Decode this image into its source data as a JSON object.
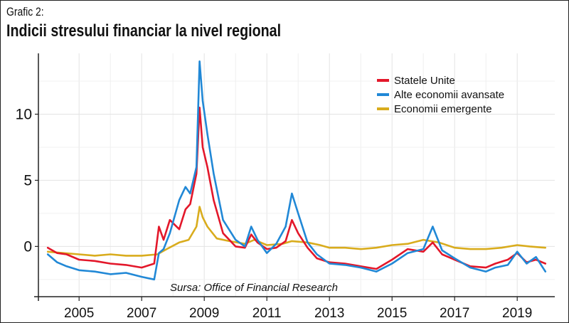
{
  "header": {
    "label": "Grafic 2:",
    "title": "Indicii stresului financiar la nivel regional"
  },
  "source": "Sursa: Office of Financial Research",
  "chart_data": {
    "type": "line",
    "title": "Indicii stresului financiar la nivel regional",
    "xlabel": "",
    "ylabel": "",
    "xlim": [
      2003.7,
      2020.2
    ],
    "ylim": [
      -3.8,
      14.6
    ],
    "xticks": [
      2005,
      2007,
      2009,
      2011,
      2013,
      2015,
      2017,
      2019
    ],
    "xtick_labels": [
      "2005",
      "2007",
      "2009",
      "2011",
      "2013",
      "2015",
      "2017",
      "2019"
    ],
    "yticks": [
      0,
      5,
      10
    ],
    "ytick_labels": [
      "0",
      "5",
      "10"
    ],
    "grid": true,
    "legend_position": "top-right",
    "series": [
      {
        "name": "Statele Unite",
        "color": "#e3172a",
        "points": [
          [
            2004.0,
            -0.1
          ],
          [
            2004.3,
            -0.5
          ],
          [
            2004.6,
            -0.6
          ],
          [
            2005.0,
            -1.0
          ],
          [
            2005.5,
            -1.1
          ],
          [
            2006.0,
            -1.3
          ],
          [
            2006.5,
            -1.4
          ],
          [
            2007.0,
            -1.6
          ],
          [
            2007.4,
            -1.3
          ],
          [
            2007.55,
            1.5
          ],
          [
            2007.7,
            0.5
          ],
          [
            2007.9,
            2.0
          ],
          [
            2008.2,
            1.3
          ],
          [
            2008.4,
            2.8
          ],
          [
            2008.55,
            3.2
          ],
          [
            2008.75,
            5.5
          ],
          [
            2008.85,
            10.5
          ],
          [
            2008.95,
            7.5
          ],
          [
            2009.1,
            6.0
          ],
          [
            2009.3,
            3.5
          ],
          [
            2009.6,
            1.0
          ],
          [
            2010.0,
            0.0
          ],
          [
            2010.3,
            -0.1
          ],
          [
            2010.5,
            0.9
          ],
          [
            2010.7,
            0.3
          ],
          [
            2011.0,
            -0.2
          ],
          [
            2011.3,
            -0.1
          ],
          [
            2011.6,
            0.4
          ],
          [
            2011.8,
            2.0
          ],
          [
            2012.0,
            1.0
          ],
          [
            2012.3,
            -0.1
          ],
          [
            2012.6,
            -0.9
          ],
          [
            2013.0,
            -1.2
          ],
          [
            2013.5,
            -1.3
          ],
          [
            2014.0,
            -1.5
          ],
          [
            2014.5,
            -1.7
          ],
          [
            2015.0,
            -1.0
          ],
          [
            2015.5,
            -0.2
          ],
          [
            2016.0,
            -0.4
          ],
          [
            2016.3,
            0.3
          ],
          [
            2016.6,
            -0.6
          ],
          [
            2017.0,
            -1.0
          ],
          [
            2017.5,
            -1.5
          ],
          [
            2018.0,
            -1.6
          ],
          [
            2018.3,
            -1.3
          ],
          [
            2018.7,
            -1.0
          ],
          [
            2019.0,
            -0.5
          ],
          [
            2019.3,
            -1.2
          ],
          [
            2019.6,
            -1.0
          ],
          [
            2019.9,
            -1.3
          ]
        ]
      },
      {
        "name": "Alte economii avansate",
        "color": "#2188d6",
        "points": [
          [
            2004.0,
            -0.6
          ],
          [
            2004.3,
            -1.2
          ],
          [
            2004.6,
            -1.5
          ],
          [
            2005.0,
            -1.8
          ],
          [
            2005.5,
            -1.9
          ],
          [
            2006.0,
            -2.1
          ],
          [
            2006.5,
            -2.0
          ],
          [
            2007.0,
            -2.3
          ],
          [
            2007.4,
            -2.5
          ],
          [
            2007.55,
            -0.5
          ],
          [
            2007.7,
            -0.2
          ],
          [
            2007.9,
            1.0
          ],
          [
            2008.2,
            3.5
          ],
          [
            2008.4,
            4.5
          ],
          [
            2008.55,
            4.0
          ],
          [
            2008.75,
            6.0
          ],
          [
            2008.85,
            14.0
          ],
          [
            2008.95,
            11.0
          ],
          [
            2009.1,
            8.5
          ],
          [
            2009.3,
            5.5
          ],
          [
            2009.6,
            2.0
          ],
          [
            2010.0,
            0.5
          ],
          [
            2010.3,
            0.0
          ],
          [
            2010.5,
            1.5
          ],
          [
            2010.7,
            0.5
          ],
          [
            2011.0,
            -0.5
          ],
          [
            2011.3,
            0.2
          ],
          [
            2011.6,
            1.5
          ],
          [
            2011.8,
            4.0
          ],
          [
            2012.0,
            2.5
          ],
          [
            2012.3,
            0.3
          ],
          [
            2012.6,
            -0.6
          ],
          [
            2013.0,
            -1.3
          ],
          [
            2013.5,
            -1.4
          ],
          [
            2014.0,
            -1.6
          ],
          [
            2014.5,
            -1.9
          ],
          [
            2015.0,
            -1.3
          ],
          [
            2015.5,
            -0.5
          ],
          [
            2016.0,
            -0.2
          ],
          [
            2016.3,
            1.5
          ],
          [
            2016.6,
            -0.3
          ],
          [
            2017.0,
            -0.9
          ],
          [
            2017.5,
            -1.6
          ],
          [
            2018.0,
            -1.9
          ],
          [
            2018.3,
            -1.6
          ],
          [
            2018.7,
            -1.4
          ],
          [
            2019.0,
            -0.4
          ],
          [
            2019.3,
            -1.3
          ],
          [
            2019.6,
            -0.8
          ],
          [
            2019.9,
            -1.9
          ]
        ]
      },
      {
        "name": "Economii emergente",
        "color": "#d9ac1d",
        "points": [
          [
            2004.0,
            -0.4
          ],
          [
            2004.5,
            -0.5
          ],
          [
            2005.0,
            -0.6
          ],
          [
            2005.5,
            -0.7
          ],
          [
            2006.0,
            -0.6
          ],
          [
            2006.5,
            -0.7
          ],
          [
            2007.0,
            -0.7
          ],
          [
            2007.5,
            -0.6
          ],
          [
            2007.8,
            -0.2
          ],
          [
            2008.2,
            0.3
          ],
          [
            2008.5,
            0.5
          ],
          [
            2008.75,
            1.5
          ],
          [
            2008.85,
            3.0
          ],
          [
            2008.95,
            2.2
          ],
          [
            2009.1,
            1.5
          ],
          [
            2009.4,
            0.6
          ],
          [
            2009.8,
            0.4
          ],
          [
            2010.3,
            0.2
          ],
          [
            2010.6,
            0.5
          ],
          [
            2011.0,
            0.1
          ],
          [
            2011.5,
            0.2
          ],
          [
            2011.8,
            0.4
          ],
          [
            2012.3,
            0.3
          ],
          [
            2012.7,
            0.1
          ],
          [
            2013.0,
            -0.1
          ],
          [
            2013.5,
            -0.1
          ],
          [
            2014.0,
            -0.2
          ],
          [
            2014.5,
            -0.1
          ],
          [
            2015.0,
            0.1
          ],
          [
            2015.5,
            0.2
          ],
          [
            2016.0,
            0.5
          ],
          [
            2016.5,
            0.3
          ],
          [
            2017.0,
            -0.1
          ],
          [
            2017.5,
            -0.2
          ],
          [
            2018.0,
            -0.2
          ],
          [
            2018.5,
            -0.1
          ],
          [
            2019.0,
            0.1
          ],
          [
            2019.4,
            0.0
          ],
          [
            2019.9,
            -0.1
          ]
        ]
      }
    ]
  }
}
